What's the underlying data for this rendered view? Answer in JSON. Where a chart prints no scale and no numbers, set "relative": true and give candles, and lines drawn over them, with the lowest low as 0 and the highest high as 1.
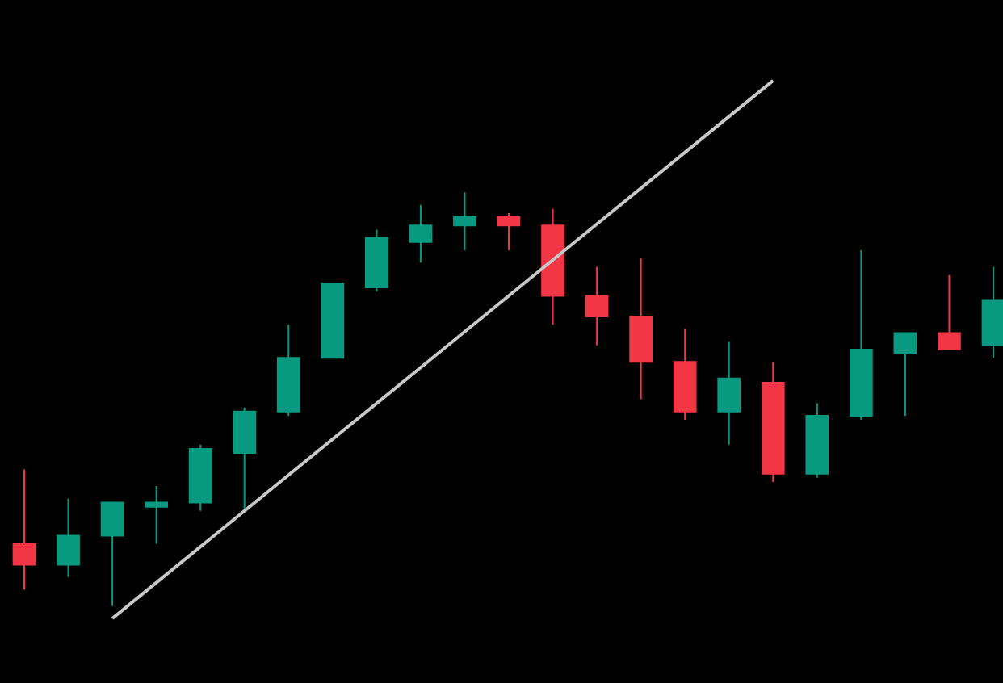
{
  "chart_data": {
    "type": "candlestick",
    "relative": true,
    "categories": [
      null,
      null,
      null,
      null,
      null,
      null,
      null,
      null,
      null,
      null,
      null,
      null,
      null,
      null,
      null,
      null,
      null,
      null,
      null,
      null,
      null,
      null,
      null
    ],
    "ohlc": [
      [
        0.15,
        0.33,
        0.04,
        0.1
      ],
      [
        0.1,
        0.26,
        0.07,
        0.17
      ],
      [
        0.17,
        0.25,
        0.0,
        0.25
      ],
      [
        0.24,
        0.29,
        0.15,
        0.25
      ],
      [
        0.25,
        0.39,
        0.23,
        0.38
      ],
      [
        0.37,
        0.48,
        0.23,
        0.47
      ],
      [
        0.47,
        0.68,
        0.46,
        0.6
      ],
      [
        0.6,
        0.78,
        0.6,
        0.78
      ],
      [
        0.77,
        0.91,
        0.76,
        0.89
      ],
      [
        0.88,
        0.97,
        0.83,
        0.92
      ],
      [
        0.92,
        1.0,
        0.86,
        0.94
      ],
      [
        0.94,
        0.95,
        0.86,
        0.92
      ],
      [
        0.92,
        0.96,
        0.68,
        0.75
      ],
      [
        0.75,
        0.82,
        0.63,
        0.7
      ],
      [
        0.7,
        0.84,
        0.5,
        0.59
      ],
      [
        0.59,
        0.67,
        0.45,
        0.47
      ],
      [
        0.47,
        0.64,
        0.39,
        0.55
      ],
      [
        0.54,
        0.59,
        0.3,
        0.32
      ],
      [
        0.32,
        0.49,
        0.31,
        0.46
      ],
      [
        0.46,
        0.86,
        0.45,
        0.62
      ],
      [
        0.61,
        0.66,
        0.46,
        0.66
      ],
      [
        0.66,
        0.8,
        0.62,
        0.62
      ],
      [
        0.63,
        0.82,
        0.6,
        0.74
      ]
    ],
    "colors": [
      "#f23645",
      "#089981",
      "#089981",
      "#089981",
      "#089981",
      "#089981",
      "#089981",
      "#089981",
      "#089981",
      "#089981",
      "#089981",
      "#f23645",
      "#f23645",
      "#f23645",
      "#f23645",
      "#f23645",
      "#089981",
      "#f23645",
      "#089981",
      "#089981",
      "#089981",
      "#f23645",
      "#089981"
    ],
    "series": [
      {
        "type": "line",
        "values": [
          null,
          null,
          -0.03,
          null,
          null,
          null,
          null,
          null,
          null,
          null,
          null,
          null,
          null,
          null,
          null,
          null,
          null,
          1.27,
          null,
          null,
          null,
          null,
          null
        ],
        "color": "#c8c8c8"
      }
    ]
  }
}
